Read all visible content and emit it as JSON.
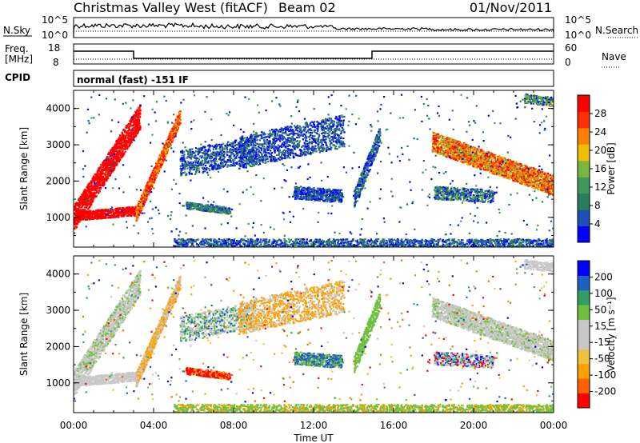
{
  "header": {
    "title": "Christmas Valley West (fitACF)",
    "beam": "Beam 02",
    "date": "01/Nov/2011"
  },
  "top_panels": {
    "nsky_label": "N.Sky",
    "nsky_ticks": [
      "10^5",
      "10^0"
    ],
    "nsearch_label": "N.Search",
    "nsearch_ticks": [
      "10^5",
      "10^0"
    ],
    "freq_label_line1": "Freq.",
    "freq_label_line2": "[MHz]",
    "freq_ticks": [
      "18",
      "8"
    ],
    "nave_label": "Nave",
    "nave_ticks": [
      "60",
      "0"
    ],
    "cpid_label": "CPID",
    "cpid_text": "normal (fast) -151 IF"
  },
  "chart_data": [
    {
      "type": "heatmap",
      "name": "power-panel",
      "ylabel": "Slant Range [km]",
      "yticks": [
        1000,
        2000,
        3000,
        4000
      ],
      "ylim": [
        180,
        4500
      ],
      "xlim": [
        0,
        24
      ],
      "colorbar": {
        "label": "Power [dB]",
        "ticks": [
          "28",
          "24",
          "20",
          "16",
          "12",
          "8",
          "4"
        ],
        "range": [
          0,
          30
        ],
        "colors": [
          "#0000ff",
          "#1f4fb4",
          "#2a7d5a",
          "#3f9a5a",
          "#7ab540",
          "#f0c000",
          "#ff8000",
          "#ff3000",
          "#ff0000"
        ]
      }
    },
    {
      "type": "heatmap",
      "name": "velocity-panel",
      "ylabel": "Slant Range [km]",
      "yticks": [
        1000,
        2000,
        3000,
        4000
      ],
      "ylim": [
        180,
        4500
      ],
      "xlim": [
        0,
        24
      ],
      "colorbar": {
        "label": "Velocity [m s⁻¹]",
        "ticks": [
          "200",
          "100",
          "50",
          "15",
          "-15",
          "-50",
          "-100",
          "-200"
        ],
        "range": [
          -250,
          250
        ],
        "colors": [
          "#ff0000",
          "#ff6000",
          "#ffa000",
          "#f0c040",
          "#c8c8c8",
          "#c8c8c8",
          "#70c040",
          "#30a060",
          "#2060c0",
          "#0000ff"
        ]
      }
    }
  ],
  "xaxis": {
    "ticks": [
      "00:00",
      "04:00",
      "08:00",
      "12:00",
      "16:00",
      "20:00",
      "00:00"
    ],
    "label": "Time UT"
  }
}
